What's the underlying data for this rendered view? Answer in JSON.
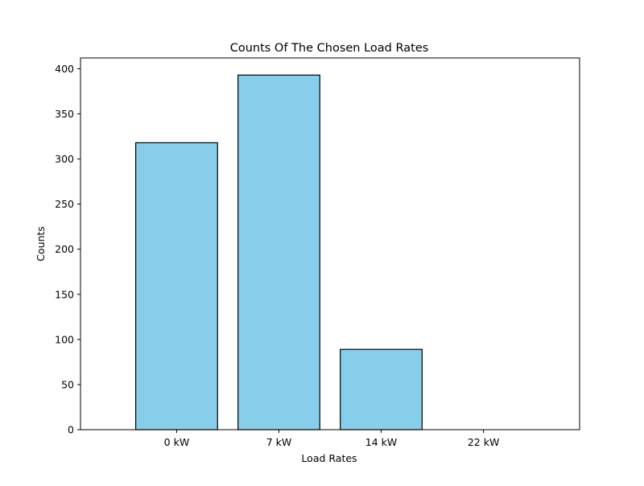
{
  "chart_data": {
    "type": "bar",
    "title": "Counts Of The Chosen Load Rates",
    "xlabel": "Load Rates",
    "ylabel": "Counts",
    "categories": [
      "0 kW",
      "7 kW",
      "14 kW",
      "22 kW"
    ],
    "values": [
      318,
      393,
      89,
      0
    ],
    "ylim": [
      0,
      412
    ],
    "yticks": [
      0,
      50,
      100,
      150,
      200,
      250,
      300,
      350,
      400
    ],
    "grid": false,
    "legend": "none",
    "bar_color": "#87CEEB",
    "bar_edge_color": "#000000"
  }
}
